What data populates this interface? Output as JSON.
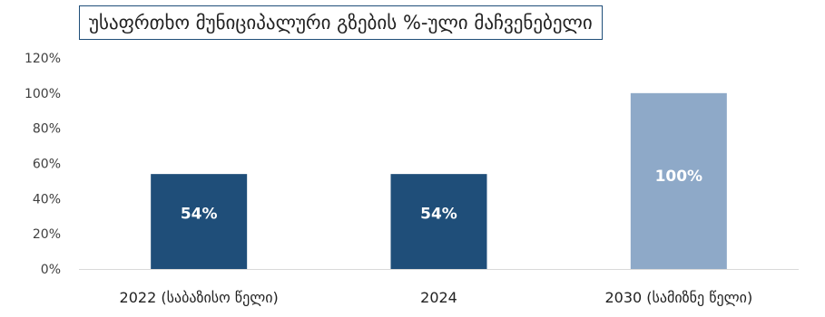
{
  "chart_data": {
    "type": "bar",
    "title": "უსაფრთხო მუნიციპალური გზების %-ული მაჩვენებელი",
    "categories": [
      "2022 (საბაზისო წელი)",
      "2024",
      "2030 (სამიზნე წელი)"
    ],
    "values": [
      54,
      54,
      100
    ],
    "data_labels": [
      "54%",
      "54%",
      "100%"
    ],
    "bar_colors": [
      "#1f4e79",
      "#1f4e79",
      "#8ea9c8"
    ],
    "y_ticks": [
      "0%",
      "20%",
      "40%",
      "60%",
      "80%",
      "100%",
      "120%"
    ],
    "ylim": [
      0,
      120
    ],
    "grid": false,
    "legend": "none"
  }
}
